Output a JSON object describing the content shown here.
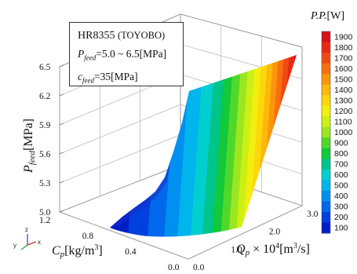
{
  "info_box": {
    "material": "HR8355",
    "maker": "(TOYOBO)",
    "p_feed_symbol": "P",
    "p_feed_sub": "feed",
    "p_feed_text": "=5.0 ~ 6.5[MPa]",
    "c_feed_symbol": "c",
    "c_feed_sub": "feed",
    "c_feed_text": "=35[MPa]"
  },
  "triad": {
    "z": "z",
    "y": "y",
    "x": "x"
  },
  "chart_data": {
    "type": "surface3d",
    "title": "",
    "zlabel": "P_feed[MPa]",
    "z_ticks": [
      "5.0",
      "5.3",
      "5.6",
      "5.9",
      "6.2",
      "6.5"
    ],
    "zlim": [
      5.0,
      6.5
    ],
    "cp_label": "Cp[kg/m3]",
    "cp_ticks": [
      "0.0",
      "0.4",
      "0.8",
      "1.2"
    ],
    "cplim": [
      0.0,
      1.2
    ],
    "qp_label": "Qp × 10^4[m3/s]",
    "qp_ticks": [
      "0.0",
      "1.0",
      "2.0",
      "3.0"
    ],
    "qplim": [
      0.0,
      3.0
    ],
    "colorbar": {
      "label": "P.P.[W]",
      "ticks": [
        1900,
        1800,
        1700,
        1600,
        1500,
        1400,
        1300,
        1200,
        1100,
        1000,
        900,
        800,
        700,
        600,
        500,
        400,
        300,
        200,
        100
      ],
      "colors": [
        "#d8101a",
        "#e62a14",
        "#f04a12",
        "#f7700f",
        "#fb950c",
        "#feb80a",
        "#fed70a",
        "#f3ee0e",
        "#cdef14",
        "#9be620",
        "#4fd82a",
        "#11c93a",
        "#00c58a",
        "#00cfd0",
        "#00b4ec",
        "#0090f0",
        "#0068ea",
        "#0040de",
        "#001ec8"
      ],
      "range": [
        100,
        1900
      ]
    }
  }
}
